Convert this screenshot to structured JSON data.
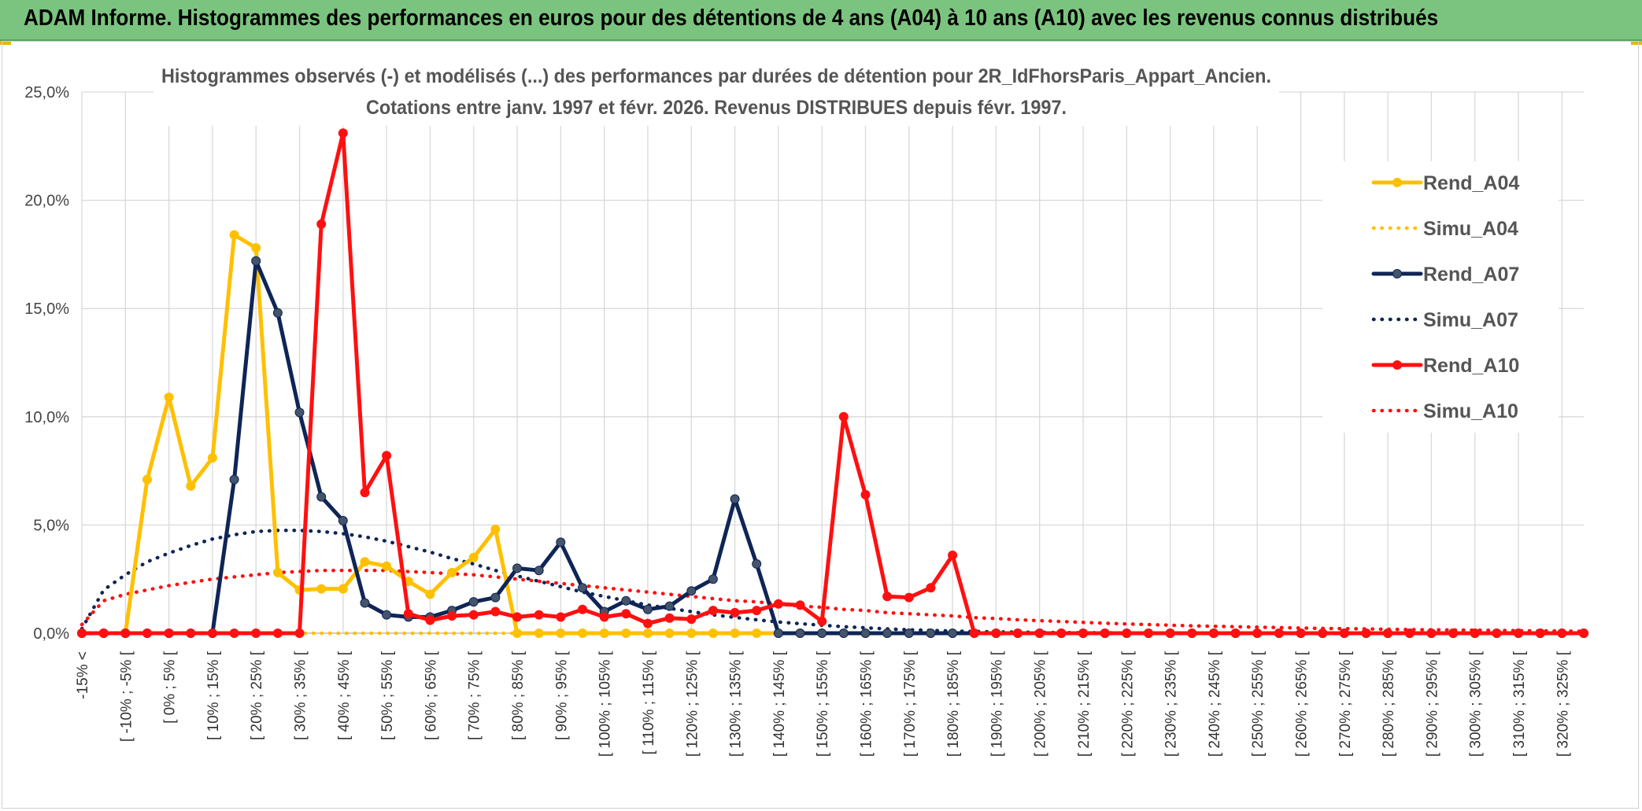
{
  "banner": {
    "title": "ADAM Informe. Histogrammes des performances en euros pour des détentions de 4 ans (A04) à 10 ans (A10) avec les revenus connus distribués",
    "background": "#7bc47f"
  },
  "chart_data": {
    "type": "line",
    "title_line1": "Histogrammes observés (-) et modélisés (...) des performances par durées de détention pour 2R_IdFhorsParis_Appart_Ancien.",
    "title_line2": "Cotations entre janv. 1997 et févr. 2026. Revenus DISTRIBUES depuis févr. 1997.",
    "ylim": [
      0,
      25
    ],
    "yticks": [
      "0,0%",
      "5,0%",
      "10,0%",
      "15,0%",
      "20,0%",
      "25,0%"
    ],
    "grid": true,
    "legend_position": "right",
    "x_labels": [
      "-15% <",
      "[ -10% ; -5% [",
      "[ 0% ; 5% [",
      "[ 10% ; 15% [",
      "[ 20% ; 25% [",
      "[ 30% ; 35% [",
      "[ 40% ; 45% [",
      "[ 50% ; 55% [",
      "[ 60% ; 65% [",
      "[ 70% ; 75% [",
      "[ 80% ; 85% [",
      "[ 90% ; 95% [",
      "[ 100% ; 105% [",
      "[ 110% ; 115% [",
      "[ 120% ; 125% [",
      "[ 130% ; 135% [",
      "[ 140% ; 145% [",
      "[ 150% ; 155% [",
      "[ 160% ; 165% [",
      "[ 170% ; 175% [",
      "[ 180% ; 185% [",
      "[ 190% ; 195% [",
      "[ 200% ; 205% [",
      "[ 210% ; 215% [",
      "[ 220% ; 225% [",
      "[ 230% ; 235% [",
      "[ 240% ; 245% [",
      "[ 250% ; 255% [",
      "[ 260% ; 265% [",
      "[ 270% ; 275% [",
      "[ 280% ; 285% [",
      "[ 290% ; 295% [",
      "[ 300% ; 305% [",
      "[ 310% ; 315% [",
      "[ 320% ; 325% ["
    ],
    "x_label_step": 2,
    "n_bins": 70,
    "series": [
      {
        "name": "Rend_A04",
        "color": "#ffc000",
        "style": "solid",
        "markers": true,
        "values": [
          0,
          0,
          0,
          7.1,
          10.9,
          6.8,
          8.1,
          18.4,
          17.8,
          2.8,
          2.0,
          2.05,
          2.05,
          3.3,
          3.1,
          2.4,
          1.8,
          2.8,
          3.5,
          4.8,
          0,
          0,
          0,
          0,
          0,
          0,
          0,
          0,
          0,
          0,
          0,
          0,
          0,
          0,
          0,
          0,
          0,
          0,
          0,
          0,
          0,
          0,
          0,
          0,
          0,
          0,
          0,
          0,
          0,
          0,
          0,
          0,
          0,
          0,
          0,
          0,
          0,
          0,
          0,
          0,
          0,
          0,
          0,
          0,
          0,
          0,
          0,
          0,
          0,
          0
        ]
      },
      {
        "name": "Simu_A04",
        "color": "#ffc000",
        "style": "dotted",
        "markers": false,
        "values": [
          0,
          0,
          0,
          0,
          0,
          0,
          0,
          0,
          0,
          0,
          0,
          0,
          0,
          0,
          0,
          0,
          0,
          0,
          0,
          0,
          0,
          0,
          0,
          0,
          0,
          0,
          0,
          0,
          0,
          0,
          0,
          0,
          0,
          0,
          0,
          0,
          0,
          0,
          0,
          0,
          0,
          0,
          0,
          0,
          0,
          0,
          0,
          0,
          0,
          0,
          0,
          0,
          0,
          0,
          0,
          0,
          0,
          0,
          0,
          0,
          0,
          0,
          0,
          0,
          0,
          0,
          0,
          0,
          0,
          0
        ]
      },
      {
        "name": "Rend_A07",
        "color": "#0f2557",
        "style": "solid",
        "markers": true,
        "values": [
          0,
          0,
          0,
          0,
          0,
          0,
          0,
          7.1,
          17.2,
          14.8,
          10.2,
          6.3,
          5.2,
          1.4,
          0.85,
          0.75,
          0.75,
          1.05,
          1.45,
          1.65,
          3.0,
          2.9,
          4.2,
          2.1,
          1.0,
          1.5,
          1.1,
          1.25,
          1.95,
          2.5,
          6.2,
          3.2,
          0,
          0,
          0,
          0,
          0,
          0,
          0,
          0,
          0,
          0,
          0,
          0,
          0,
          0,
          0,
          0,
          0,
          0,
          0,
          0,
          0,
          0,
          0,
          0,
          0,
          0,
          0,
          0,
          0,
          0,
          0,
          0,
          0,
          0,
          0,
          0,
          0,
          0
        ]
      },
      {
        "name": "Simu_A07",
        "color": "#0f2557",
        "style": "dotted",
        "markers": false,
        "values": [
          0.2,
          2.0,
          2.7,
          3.3,
          3.7,
          4.05,
          4.35,
          4.55,
          4.7,
          4.75,
          4.75,
          4.7,
          4.6,
          4.45,
          4.25,
          4.0,
          3.75,
          3.45,
          3.2,
          2.9,
          2.65,
          2.4,
          2.15,
          1.9,
          1.7,
          1.5,
          1.3,
          1.15,
          1.0,
          0.85,
          0.73,
          0.62,
          0.52,
          0.44,
          0.37,
          0.3,
          0.25,
          0.2,
          0.16,
          0.13,
          0.1,
          0.08,
          0.06,
          0.05,
          0.04,
          0.03,
          0.02,
          0.02,
          0.01,
          0.01,
          0,
          0,
          0,
          0,
          0,
          0,
          0,
          0,
          0,
          0,
          0,
          0,
          0,
          0,
          0,
          0,
          0,
          0,
          0,
          0
        ]
      },
      {
        "name": "Rend_A10",
        "color": "#ff1010",
        "style": "solid",
        "markers": true,
        "values": [
          0,
          0,
          0,
          0,
          0,
          0,
          0,
          0,
          0,
          0,
          0,
          18.9,
          23.1,
          6.5,
          8.2,
          0.9,
          0.6,
          0.8,
          0.85,
          1.0,
          0.75,
          0.85,
          0.75,
          1.1,
          0.75,
          0.9,
          0.45,
          0.7,
          0.65,
          1.05,
          0.95,
          1.05,
          1.35,
          1.3,
          0.55,
          10.0,
          6.4,
          1.7,
          1.65,
          2.1,
          3.6,
          0,
          0,
          0,
          0,
          0,
          0,
          0,
          0,
          0,
          0,
          0,
          0,
          0,
          0,
          0,
          0,
          0,
          0,
          0,
          0,
          0,
          0,
          0,
          0,
          0,
          0,
          0,
          0,
          0
        ]
      },
      {
        "name": "Simu_A10",
        "color": "#ff1010",
        "style": "dotted",
        "markers": false,
        "values": [
          0.4,
          1.5,
          1.8,
          2.0,
          2.2,
          2.35,
          2.5,
          2.6,
          2.7,
          2.8,
          2.85,
          2.9,
          2.9,
          2.9,
          2.9,
          2.85,
          2.8,
          2.75,
          2.7,
          2.6,
          2.5,
          2.4,
          2.3,
          2.2,
          2.1,
          2.0,
          1.9,
          1.8,
          1.7,
          1.6,
          1.5,
          1.45,
          1.35,
          1.25,
          1.2,
          1.1,
          1.05,
          0.95,
          0.9,
          0.85,
          0.8,
          0.72,
          0.68,
          0.62,
          0.58,
          0.54,
          0.5,
          0.46,
          0.43,
          0.4,
          0.37,
          0.34,
          0.32,
          0.3,
          0.28,
          0.26,
          0.24,
          0.22,
          0.21,
          0.2,
          0.18,
          0.17,
          0.16,
          0.15,
          0.14,
          0.13,
          0.12,
          0.11,
          0.1,
          0.09
        ]
      }
    ]
  }
}
